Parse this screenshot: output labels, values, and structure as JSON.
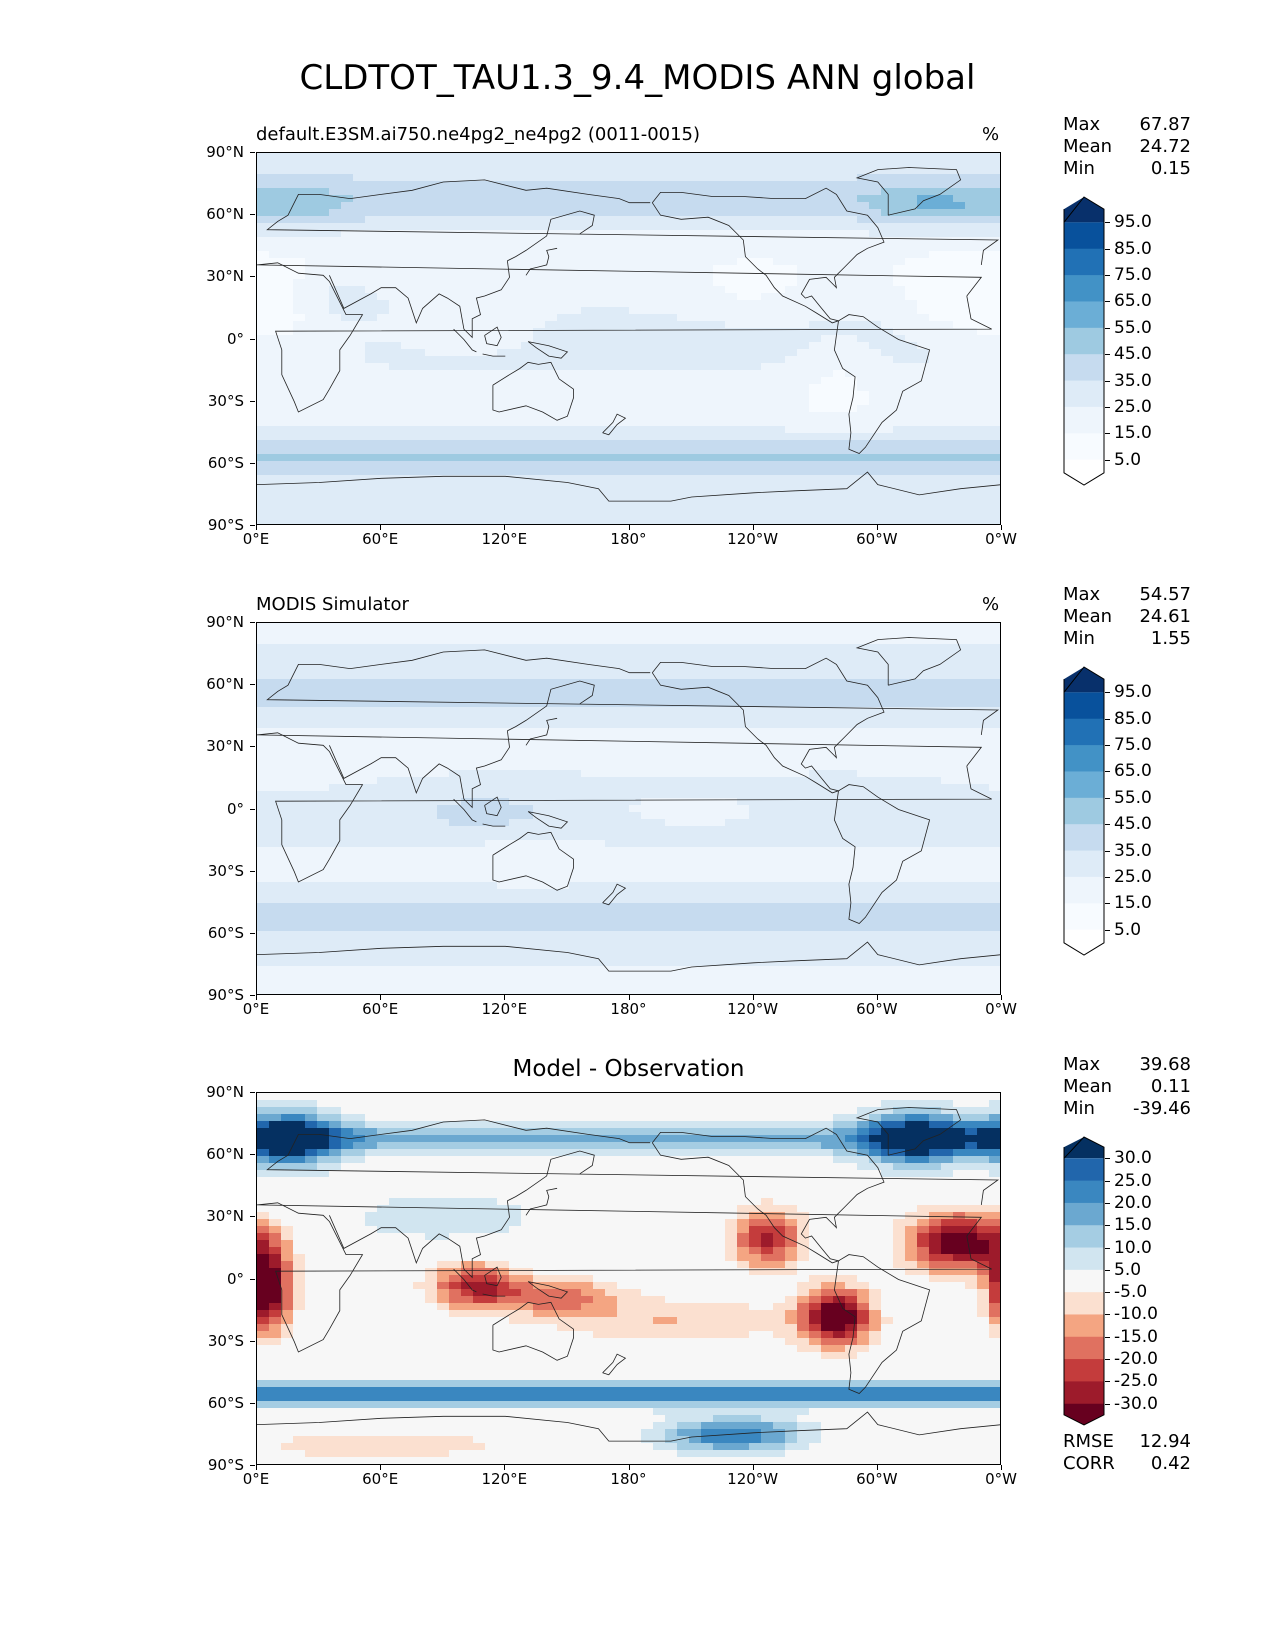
{
  "figure_title": "CLDTOT_TAU1.3_9.4_MODIS ANN global",
  "lat_ticks": [
    "90°N",
    "60°N",
    "30°N",
    "0°",
    "30°S",
    "60°S",
    "90°S"
  ],
  "lon_ticks": [
    "0°E",
    "60°E",
    "120°E",
    "180°",
    "120°W",
    "60°W",
    "0°W"
  ],
  "panels": [
    {
      "title": "default.E3SM.ai750.ne4pg2_ne4pg2 (0011-0015)",
      "title_center": "",
      "units": "%",
      "stats": {
        "max_label": "Max",
        "max": "67.87",
        "mean_label": "Mean",
        "mean": "24.72",
        "min_label": "Min",
        "min": "0.15"
      },
      "colorbar_labels": [
        "95.0",
        "85.0",
        "75.0",
        "65.0",
        "55.0",
        "45.0",
        "35.0",
        "25.0",
        "15.0",
        "5.0"
      ],
      "colorbar_colors": [
        "#08306b",
        "#08519c",
        "#2171b5",
        "#4292c6",
        "#6baed6",
        "#9ecae1",
        "#c6dbef",
        "#deebf7",
        "#eef5fc",
        "#f7fbff",
        "#ffffff"
      ]
    },
    {
      "title": "MODIS Simulator",
      "title_center": "",
      "units": "%",
      "stats": {
        "max_label": "Max",
        "max": "54.57",
        "mean_label": "Mean",
        "mean": "24.61",
        "min_label": "Min",
        "min": "1.55"
      },
      "colorbar_labels": [
        "95.0",
        "85.0",
        "75.0",
        "65.0",
        "55.0",
        "45.0",
        "35.0",
        "25.0",
        "15.0",
        "5.0"
      ],
      "colorbar_colors": [
        "#08306b",
        "#08519c",
        "#2171b5",
        "#4292c6",
        "#6baed6",
        "#9ecae1",
        "#c6dbef",
        "#deebf7",
        "#eef5fc",
        "#f7fbff",
        "#ffffff"
      ]
    },
    {
      "title": "",
      "title_center": "Model - Observation",
      "units": "",
      "stats": {
        "max_label": "Max",
        "max": "39.68",
        "mean_label": "Mean",
        "mean": "0.11",
        "min_label": "Min",
        "min": "-39.46"
      },
      "colorbar_labels": [
        "30.0",
        "25.0",
        "20.0",
        "15.0",
        "10.0",
        "5.0",
        "-5.0",
        "-10.0",
        "-15.0",
        "-20.0",
        "-25.0",
        "-30.0"
      ],
      "colorbar_colors": [
        "#053061",
        "#2166ac",
        "#3a87c0",
        "#6ba8d0",
        "#a5cde3",
        "#d1e5f0",
        "#f7f7f7",
        "#fbe0d0",
        "#f4a582",
        "#e07160",
        "#c43c3c",
        "#9d1b2b",
        "#67001f"
      ],
      "rmse_label": "RMSE",
      "rmse": "12.94",
      "corr_label": "CORR",
      "corr": "0.42"
    }
  ]
}
